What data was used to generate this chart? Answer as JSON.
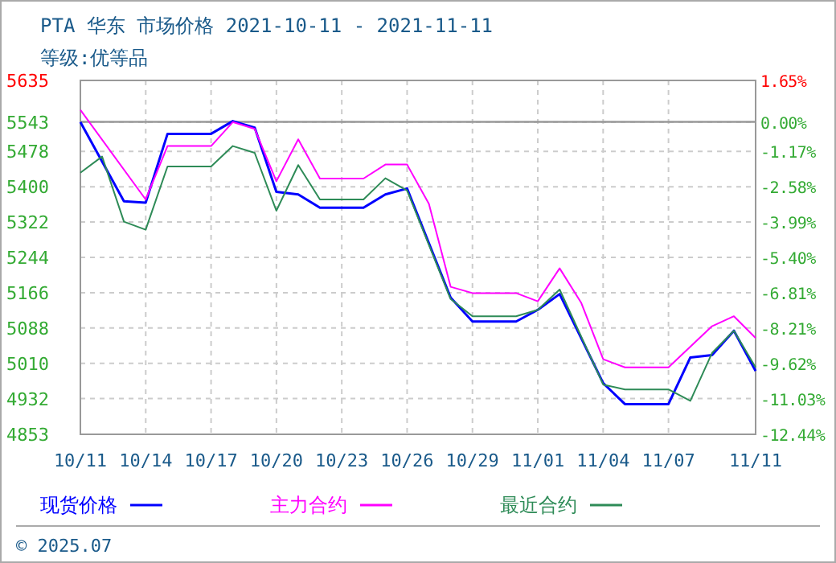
{
  "chart_data": {
    "type": "line",
    "title": "PTA 华东 市场价格 2021-10-11 - 2021-11-11",
    "subtitle": "等级:优等品",
    "x": [
      "2021-10-11",
      "2021-10-12",
      "2021-10-13",
      "2021-10-14",
      "2021-10-15",
      "2021-10-17",
      "2021-10-18",
      "2021-10-19",
      "2021-10-20",
      "2021-10-21",
      "2021-10-22",
      "2021-10-24",
      "2021-10-25",
      "2021-10-26",
      "2021-10-27",
      "2021-10-28",
      "2021-10-29",
      "2021-10-31",
      "2021-11-01",
      "2021-11-02",
      "2021-11-03",
      "2021-11-04",
      "2021-11-05",
      "2021-11-07",
      "2021-11-08",
      "2021-11-09",
      "2021-11-10",
      "2021-11-11"
    ],
    "series": [
      {
        "name": "现货价格",
        "color": "#0000ff",
        "values": [
          5543,
          null,
          5368,
          5365,
          5517,
          5517,
          5545,
          5531,
          5389,
          5383,
          5354,
          5354,
          5383,
          5396,
          null,
          5155,
          5102,
          5102,
          5128,
          5163,
          null,
          4966,
          4920,
          4920,
          5023,
          5028,
          5082,
          4993
        ]
      },
      {
        "name": "主力合约",
        "color": "#ff00ff",
        "values": [
          5570,
          null,
          null,
          5372,
          5490,
          5490,
          5543,
          5528,
          5412,
          5505,
          5418,
          5418,
          5449,
          5449,
          5362,
          5179,
          5165,
          5165,
          5147,
          5220,
          5143,
          5019,
          5001,
          5001,
          null,
          5092,
          5114,
          5066
        ]
      },
      {
        "name": "最近合约",
        "color": "#2e8b57",
        "values": [
          5431,
          5467,
          5323,
          5305,
          5445,
          5445,
          5490,
          5475,
          5347,
          5448,
          5372,
          5372,
          5419,
          5392,
          null,
          5152,
          5114,
          5114,
          5128,
          5173,
          null,
          4963,
          4952,
          4952,
          4927,
          5033,
          5082,
          5001
        ]
      }
    ],
    "xlim": [
      "2021-10-11",
      "2021-11-11"
    ],
    "xticks": [
      {
        "value": "2021-10-11",
        "label": "10/11"
      },
      {
        "value": "2021-10-14",
        "label": "10/14"
      },
      {
        "value": "2021-10-17",
        "label": "10/17"
      },
      {
        "value": "2021-10-20",
        "label": "10/20"
      },
      {
        "value": "2021-10-23",
        "label": "10/23"
      },
      {
        "value": "2021-10-26",
        "label": "10/26"
      },
      {
        "value": "2021-10-29",
        "label": "10/29"
      },
      {
        "value": "2021-11-01",
        "label": "11/01"
      },
      {
        "value": "2021-11-04",
        "label": "11/04"
      },
      {
        "value": "2021-11-07",
        "label": "11/07"
      },
      {
        "value": "2021-11-11",
        "label": "11/11"
      }
    ],
    "ylim": [
      4853,
      5635
    ],
    "yticks": [
      4853,
      4932,
      5010,
      5088,
      5166,
      5244,
      5322,
      5400,
      5478,
      5543,
      5635
    ],
    "y2lim": [
      -12.44,
      1.65
    ],
    "y2ticks": [
      {
        "value": -12.44,
        "label": "-12.44%"
      },
      {
        "value": -11.03,
        "label": "-11.03%"
      },
      {
        "value": -9.62,
        "label": "-9.62%"
      },
      {
        "value": -8.21,
        "label": "-8.21%"
      },
      {
        "value": -6.81,
        "label": "-6.81%"
      },
      {
        "value": -5.4,
        "label": "-5.40%"
      },
      {
        "value": -3.99,
        "label": "-3.99%"
      },
      {
        "value": -2.58,
        "label": "-2.58%"
      },
      {
        "value": -1.17,
        "label": "-1.17%"
      },
      {
        "value": 0,
        "label": "0.00%"
      },
      {
        "value": 1.65,
        "label": "1.65%"
      }
    ],
    "ref_lines": [
      {
        "axis": "y2",
        "value": 0,
        "color": "#999999"
      }
    ],
    "grid": true,
    "legend": "bottom",
    "line_style": "solid",
    "marker": "none",
    "annotations": [
      "© 2025.07"
    ]
  }
}
